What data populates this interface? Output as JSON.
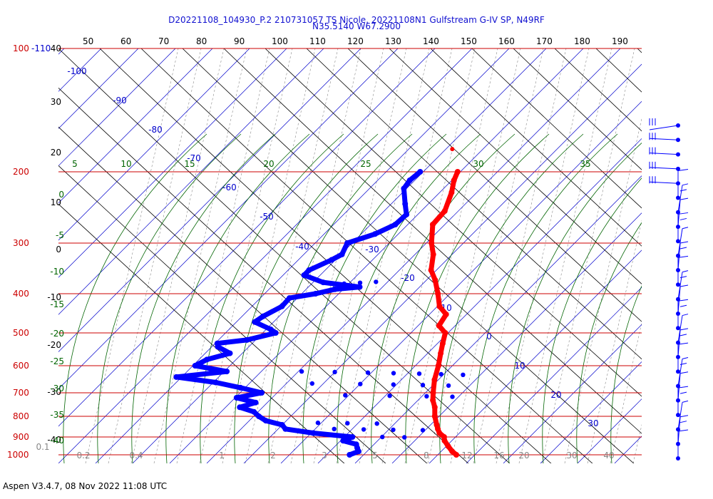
{
  "header": {
    "title_line1": "D20221108_104930_P.2 210731057 TS Nicole, 20221108N1 Gulfstream G-IV SP, N49RF",
    "title_line2": "N35.5140 W67.2900"
  },
  "footer": {
    "text": "Aspen V3.4.7, 08 Nov 2022  11:08 UTC"
  },
  "colors": {
    "temperature": "#ff0000",
    "dewpoint": "#0000ff",
    "isobar": "#cc0000",
    "isotherm": "#0000cc",
    "dry_adiabat": "#000000",
    "moist_adiabat": "#006400",
    "mixing_ratio": "#888888"
  },
  "chart_data": {
    "type": "scatter",
    "diagram": "skew-T log-P",
    "pressure_levels": [
      "100-110",
      "200",
      "300",
      "400",
      "500",
      "600",
      "700",
      "800",
      "900",
      "1000"
    ],
    "left_axis_labels": [
      "40",
      "30",
      "20",
      "10",
      "0",
      "-10",
      "-20",
      "-30",
      "-40"
    ],
    "top_axis_labels": [
      "50",
      "60",
      "70",
      "80",
      "90",
      "100",
      "110",
      "120",
      "130",
      "140",
      "150",
      "160",
      "170",
      "180",
      "190"
    ],
    "moist_top_labels": [
      "5",
      "10",
      "15",
      "20",
      "25",
      "30",
      "35"
    ],
    "moist_left_labels": [
      "0",
      "-5",
      "-10",
      "-15",
      "-20",
      "-25",
      "-30",
      "-35",
      "-40"
    ],
    "isotherm_labels": [
      "-100",
      "-90",
      "-80",
      "-70",
      "-60",
      "-50",
      "-40",
      "-30",
      "-20",
      "-10",
      "0",
      "10",
      "20",
      "30"
    ],
    "mixing_ratio_labels": [
      "0.1",
      "0.2",
      "0.4",
      "1",
      "2",
      "3",
      "5",
      "8",
      "12",
      "16",
      "20",
      "30",
      "40"
    ],
    "temperature_series": {
      "points": [
        [
          200,
          -51.5
        ],
        [
          210,
          -50.2
        ],
        [
          225,
          -47.6
        ],
        [
          250,
          -44.5
        ],
        [
          270,
          -44.1
        ],
        [
          300,
          -39.5
        ],
        [
          320,
          -36.0
        ],
        [
          350,
          -32.4
        ],
        [
          370,
          -28.7
        ],
        [
          400,
          -24.3
        ],
        [
          430,
          -20.5
        ],
        [
          450,
          -16.6
        ],
        [
          480,
          -15.5
        ],
        [
          500,
          -11.9
        ],
        [
          530,
          -9.8
        ],
        [
          560,
          -7.7
        ],
        [
          600,
          -5.0
        ],
        [
          650,
          -2.3
        ],
        [
          700,
          0.8
        ],
        [
          730,
          2.7
        ],
        [
          760,
          5.1
        ],
        [
          800,
          7.5
        ],
        [
          840,
          10.3
        ],
        [
          860,
          11.7
        ],
        [
          880,
          13.2
        ],
        [
          900,
          15.5
        ],
        [
          920,
          16.6
        ],
        [
          950,
          19.0
        ],
        [
          980,
          21.5
        ],
        [
          1000,
          23.5
        ]
      ],
      "outlier": [
        176,
        -59.0
      ]
    },
    "dewpoint_series": {
      "points": [
        [
          200,
          -61.5
        ],
        [
          210,
          -62.0
        ],
        [
          220,
          -61.4
        ],
        [
          240,
          -57.0
        ],
        [
          255,
          -53.8
        ],
        [
          270,
          -54.1
        ],
        [
          285,
          -57.0
        ],
        [
          300,
          -62.0
        ],
        [
          320,
          -60.4
        ],
        [
          330,
          -61.7
        ],
        [
          350,
          -65.0
        ],
        [
          360,
          -65.0
        ],
        [
          375,
          -58.0
        ],
        [
          385,
          -47.0
        ],
        [
          390,
          -53.0
        ],
        [
          400,
          -57.0
        ],
        [
          410,
          -62.8
        ],
        [
          430,
          -62.6
        ],
        [
          455,
          -65.0
        ],
        [
          470,
          -65.7
        ],
        [
          490,
          -59.5
        ],
        [
          500,
          -57.2
        ],
        [
          520,
          -63.0
        ],
        [
          530,
          -70.0
        ],
        [
          540,
          -69.0
        ],
        [
          560,
          -64.0
        ],
        [
          580,
          -68.5
        ],
        [
          600,
          -70.0
        ],
        [
          620,
          -60.0
        ],
        [
          640,
          -72.0
        ],
        [
          660,
          -60.0
        ],
        [
          680,
          -52.0
        ],
        [
          700,
          -45.0
        ],
        [
          720,
          -50.4
        ],
        [
          740,
          -44.0
        ],
        [
          760,
          -47.0
        ],
        [
          780,
          -42.0
        ],
        [
          800,
          -39.5
        ],
        [
          820,
          -36.5
        ],
        [
          840,
          -31.0
        ],
        [
          860,
          -29.0
        ],
        [
          880,
          -20.5
        ],
        [
          900,
          -9.0
        ],
        [
          920,
          -10.5
        ],
        [
          940,
          -6.0
        ],
        [
          960,
          -4.8
        ],
        [
          980,
          -3.5
        ],
        [
          1000,
          -5.0
        ]
      ],
      "scattered": [
        [
          376,
          -48.0
        ],
        [
          374,
          -44.0
        ],
        [
          378,
          -52.0
        ],
        [
          620,
          -40.0
        ],
        [
          622,
          -31.0
        ],
        [
          624,
          -22.0
        ],
        [
          626,
          -15.0
        ],
        [
          628,
          -8.0
        ],
        [
          630,
          -2.0
        ],
        [
          632,
          4.0
        ],
        [
          664,
          -34.0
        ],
        [
          666,
          -21.0
        ],
        [
          668,
          -12.0
        ],
        [
          670,
          -4.0
        ],
        [
          672,
          3.0
        ],
        [
          710,
          -22.0
        ],
        [
          712,
          -10.0
        ],
        [
          714,
          0.0
        ],
        [
          716,
          7.0
        ],
        [
          830,
          -22.0
        ],
        [
          832,
          -14.0
        ],
        [
          834,
          -6.0
        ],
        [
          860,
          -16.0
        ],
        [
          862,
          -8.0
        ],
        [
          864,
          0.0
        ],
        [
          866,
          8.0
        ],
        [
          900,
          -1.0
        ],
        [
          902,
          5.0
        ]
      ]
    },
    "wind_barbs_count": 24
  }
}
